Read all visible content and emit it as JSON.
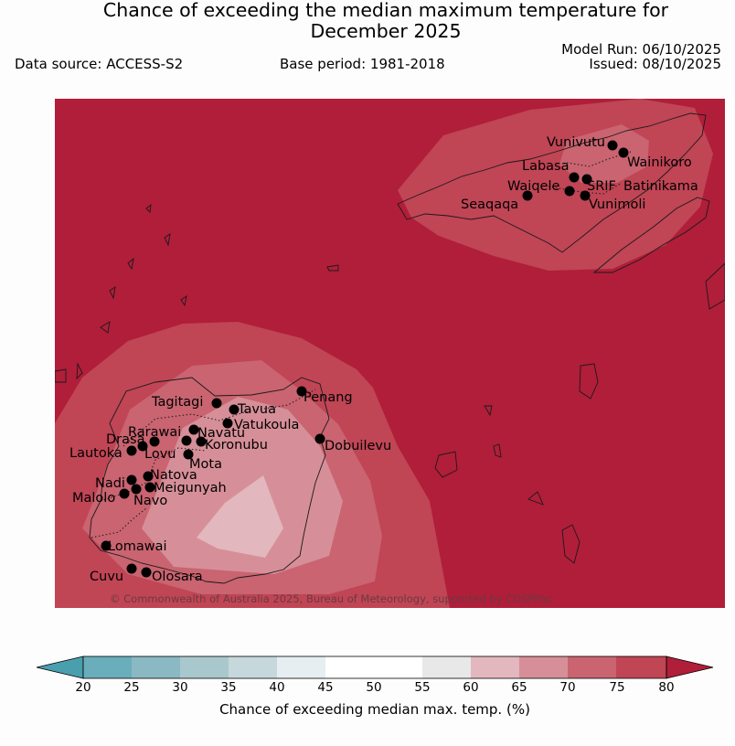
{
  "header": {
    "title_line1": "Chance of exceeding the median maximum temperature for",
    "title_line2": "December 2025",
    "data_source": "Data source: ACCESS-S2",
    "base_period": "Base period: 1981-2018",
    "model_run": "Model Run: 06/10/2025",
    "issued": "Issued: 08/10/2025"
  },
  "map": {
    "copyright": "© Commonwealth of Australia 2025, Bureau of Meteorology, supported by COSPPac",
    "places": [
      {
        "name": "Vunivutu"
      },
      {
        "name": "Wainikoro"
      },
      {
        "name": "Labasa"
      },
      {
        "name": "SRIF"
      },
      {
        "name": "Batinikama"
      },
      {
        "name": "Waiqele"
      },
      {
        "name": "Vunimoli"
      },
      {
        "name": "Seaqaqa"
      },
      {
        "name": "Tagitagi"
      },
      {
        "name": "Tavua"
      },
      {
        "name": "Penang"
      },
      {
        "name": "Vatukoula"
      },
      {
        "name": "Rarawai"
      },
      {
        "name": "Navatu"
      },
      {
        "name": "Drasa"
      },
      {
        "name": "Koronubu"
      },
      {
        "name": "Lautoka"
      },
      {
        "name": "Lovu"
      },
      {
        "name": "Dobuilevu"
      },
      {
        "name": "Mota"
      },
      {
        "name": "Natova"
      },
      {
        "name": "Nadi"
      },
      {
        "name": "Meigunyah"
      },
      {
        "name": "Malolo"
      },
      {
        "name": "Navo"
      },
      {
        "name": "Lomawai"
      },
      {
        "name": "Cuvu"
      },
      {
        "name": "Olosara"
      }
    ]
  },
  "colorbar": {
    "title": "Chance of exceeding median max. temp. (%)",
    "ticks": [
      "20",
      "25",
      "30",
      "35",
      "40",
      "45",
      "50",
      "55",
      "60",
      "65",
      "70",
      "75",
      "80"
    ],
    "colors": {
      "below_20": "#4a9fae",
      "20-25": "#6aadbb",
      "25-30": "#8ab8c3",
      "30-35": "#a9c8cd",
      "35-40": "#c6d8dc",
      "40-45": "#e7eef1",
      "45-50": "#ffffff",
      "50-55": "#ffffff",
      "55-60": "#e8e8e8",
      "60-65": "#e2b7bd",
      "65-70": "#d68f98",
      "70-75": "#c96470",
      "75-80": "#c04555",
      "above_80": "#b01e3a"
    }
  }
}
